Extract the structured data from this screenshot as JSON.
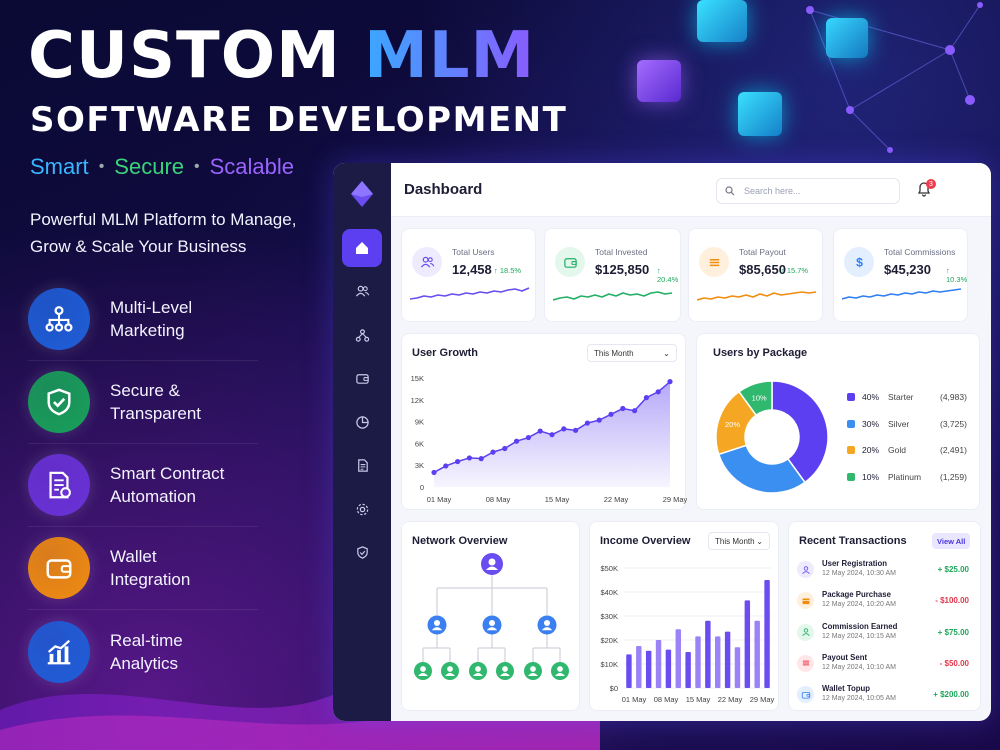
{
  "hero": {
    "title_a": "CUSTOM",
    "title_b": "MLM",
    "subtitle": "SOFTWARE DEVELOPMENT",
    "tagline": [
      {
        "text": "Smart",
        "color": "#3ab6ff"
      },
      {
        "text": "Secure",
        "color": "#3ad37a"
      },
      {
        "text": "Scalable",
        "color": "#9b63ff"
      }
    ],
    "pitch": "Powerful MLM Platform to Manage, Grow & Scale Your Business"
  },
  "features": [
    {
      "label": "Multi-Level\nMarketing",
      "icon": "hierarchy-icon",
      "color": "#1f5ed8"
    },
    {
      "label": "Secure &\nTransparent",
      "icon": "shield-check-icon",
      "color": "#19a05a"
    },
    {
      "label": "Smart Contract\nAutomation",
      "icon": "contract-icon",
      "color": "#6a32d8"
    },
    {
      "label": "Wallet\nIntegration",
      "icon": "wallet-icon",
      "color": "#f08c10"
    },
    {
      "label": "Real-time\nAnalytics",
      "icon": "analytics-icon",
      "color": "#1f5ed8"
    }
  ],
  "dashboard": {
    "title": "Dashboard",
    "search_placeholder": "Search here...",
    "notifications": "3",
    "nav": [
      "home-icon",
      "users-icon",
      "network-icon",
      "wallet-icon",
      "pie-chart-icon",
      "document-icon",
      "settings-icon",
      "shield-icon"
    ],
    "stats": [
      {
        "label": "Total Users",
        "value": "12,458",
        "change": "↑ 18.5%",
        "color": "#6a4cf0",
        "bg": "#eeebff",
        "icon": "users-icon"
      },
      {
        "label": "Total Invested",
        "value": "$125,850",
        "change": "↑ 20.4%",
        "color": "#22b065",
        "bg": "#e4f7ec",
        "icon": "wallet-icon"
      },
      {
        "label": "Total Payout",
        "value": "$85,650",
        "change": "↑ 15.7%",
        "color": "#f08c10",
        "bg": "#fff0de",
        "icon": "payout-icon"
      },
      {
        "label": "Total Commissions",
        "value": "$45,230",
        "change": "↑ 10.3%",
        "color": "#2f7ff0",
        "bg": "#e3eeff",
        "icon": "dollar-icon"
      }
    ],
    "user_growth": {
      "title": "User Growth",
      "filter": "This Month"
    },
    "package": {
      "title": "Users by Package"
    },
    "network": {
      "title": "Network Overview"
    },
    "income": {
      "title": "Income Overview",
      "filter": "This Month"
    },
    "transactions": {
      "title": "Recent Transactions",
      "view_all": "View All",
      "items": [
        {
          "name": "User Registration",
          "date": "12 May 2024, 10:30 AM",
          "amount": "+ $25.00",
          "color": "#6a4cf0",
          "bg": "#eeebff",
          "icon": "user-icon",
          "positive": true
        },
        {
          "name": "Package Purchase",
          "date": "12 May 2024, 10:20 AM",
          "amount": "- $100.00",
          "color": "#f08c10",
          "bg": "#fff0de",
          "icon": "box-icon",
          "positive": false
        },
        {
          "name": "Commission Earned",
          "date": "12 May 2024, 10:15 AM",
          "amount": "+ $75.00",
          "color": "#22b065",
          "bg": "#e4f7ec",
          "icon": "user-icon",
          "positive": true
        },
        {
          "name": "Payout Sent",
          "date": "12 May 2024, 10:10 AM",
          "amount": "- $50.00",
          "color": "#ef3b4f",
          "bg": "#ffe6e9",
          "icon": "payout-icon",
          "positive": false
        },
        {
          "name": "Wallet Topup",
          "date": "12 May 2024, 10:05 AM",
          "amount": "+ $200.00",
          "color": "#2f7ff0",
          "bg": "#e3eeff",
          "icon": "wallet-icon",
          "positive": true
        }
      ]
    }
  },
  "chart_data": [
    {
      "type": "area",
      "title": "User Growth",
      "x_ticks": [
        "01 May",
        "08 May",
        "15 May",
        "22 May",
        "29 May"
      ],
      "y_ticks": [
        "15K",
        "12K",
        "9K",
        "6K",
        "3K",
        "0"
      ],
      "ylim": [
        0,
        15000
      ],
      "x": [
        1,
        2,
        3,
        4,
        5,
        6,
        7,
        8,
        9,
        10,
        11,
        12,
        13,
        14,
        15,
        16,
        17,
        18,
        19,
        20,
        21
      ],
      "values": [
        2000,
        2900,
        3500,
        4000,
        3900,
        4800,
        5300,
        6300,
        6800,
        7700,
        7200,
        8000,
        7800,
        8800,
        9200,
        10000,
        10800,
        10500,
        12300,
        13100,
        14500
      ],
      "color": "#5b3ff0",
      "grid": false
    },
    {
      "type": "pie",
      "title": "Users by Package",
      "slices": [
        {
          "label": "Starter",
          "percent": 40,
          "count": "(4,983)",
          "color": "#5b3ff0"
        },
        {
          "label": "Silver",
          "percent": 30,
          "count": "(3,725)",
          "color": "#3b8ff0"
        },
        {
          "label": "Gold",
          "percent": 20,
          "count": "(2,491)",
          "color": "#f5a623"
        },
        {
          "label": "Platinum",
          "percent": 10,
          "count": "(1,259)",
          "color": "#2fb86e"
        }
      ]
    },
    {
      "type": "bar",
      "title": "Income Overview",
      "x_ticks": [
        "01 May",
        "08 May",
        "15 May",
        "22 May",
        "29 May"
      ],
      "y_ticks": [
        "$50K",
        "$40K",
        "$30K",
        "$20K",
        "$10K",
        "$0"
      ],
      "ylim": [
        0,
        50000
      ],
      "values": [
        14000,
        17500,
        15500,
        20000,
        16000,
        24500,
        15000,
        21500,
        28000,
        21500,
        23500,
        17000,
        36500,
        28000,
        45000
      ],
      "colors": [
        "#6a4cf0",
        "#9b82f7"
      ],
      "grid": true
    }
  ]
}
